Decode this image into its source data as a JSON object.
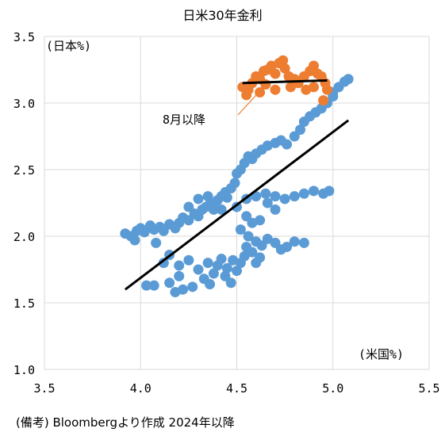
{
  "chart_data": {
    "type": "scatter",
    "title": "日米30年金利",
    "ylabel": "(日本%)",
    "xlabel": "(米国%)",
    "annotation": "8月以降",
    "note": "(備考) Bloombergより作成 2024年以降",
    "xlim": [
      3.5,
      5.5
    ],
    "ylim": [
      1.0,
      3.5
    ],
    "x_ticks": [
      "3.5",
      "4.0",
      "4.5",
      "5.0",
      "5.5"
    ],
    "y_ticks": [
      "1.0",
      "1.5",
      "2.0",
      "2.5",
      "3.0",
      "3.5"
    ],
    "grid": true,
    "colors": {
      "before_aug": "#5B9BD5",
      "from_aug": "#ED7D31",
      "trend": "#000000",
      "grid": "#d9d9d9"
    },
    "series": [
      {
        "name": "",
        "points": [
          [
            3.92,
            2.02
          ],
          [
            3.95,
            2.0
          ],
          [
            3.97,
            1.97
          ],
          [
            3.98,
            2.04
          ],
          [
            4.0,
            2.06
          ],
          [
            4.02,
            2.03
          ],
          [
            4.05,
            2.08
          ],
          [
            4.07,
            2.05
          ],
          [
            4.1,
            2.07
          ],
          [
            4.12,
            2.04
          ],
          [
            4.15,
            2.09
          ],
          [
            4.18,
            2.06
          ],
          [
            4.2,
            2.1
          ],
          [
            4.22,
            2.14
          ],
          [
            4.25,
            2.12
          ],
          [
            4.28,
            2.17
          ],
          [
            4.3,
            2.15
          ],
          [
            4.32,
            2.2
          ],
          [
            4.34,
            2.22
          ],
          [
            4.36,
            2.24
          ],
          [
            4.38,
            2.2
          ],
          [
            4.4,
            2.27
          ],
          [
            4.42,
            2.3
          ],
          [
            4.44,
            2.33
          ],
          [
            4.45,
            2.29
          ],
          [
            4.47,
            2.36
          ],
          [
            4.49,
            2.4
          ],
          [
            4.5,
            2.47
          ],
          [
            4.52,
            2.5
          ],
          [
            4.54,
            2.55
          ],
          [
            4.56,
            2.6
          ],
          [
            4.58,
            2.58
          ],
          [
            4.6,
            2.62
          ],
          [
            4.63,
            2.65
          ],
          [
            4.66,
            2.68
          ],
          [
            4.7,
            2.7
          ],
          [
            4.73,
            2.72
          ],
          [
            4.76,
            2.69
          ],
          [
            4.8,
            2.75
          ],
          [
            4.83,
            2.8
          ],
          [
            4.85,
            2.86
          ],
          [
            4.88,
            2.9
          ],
          [
            4.91,
            2.93
          ],
          [
            4.94,
            2.96
          ],
          [
            4.97,
            3.0
          ],
          [
            5.0,
            3.05
          ],
          [
            5.03,
            3.12
          ],
          [
            5.06,
            3.16
          ],
          [
            5.08,
            3.18
          ],
          [
            5.0,
            3.08
          ],
          [
            4.55,
            2.28
          ],
          [
            4.6,
            2.3
          ],
          [
            4.65,
            2.32
          ],
          [
            4.7,
            2.3
          ],
          [
            4.75,
            2.28
          ],
          [
            4.8,
            2.3
          ],
          [
            4.85,
            2.32
          ],
          [
            4.9,
            2.34
          ],
          [
            4.95,
            2.32
          ],
          [
            4.98,
            2.34
          ],
          [
            4.5,
            2.22
          ],
          [
            4.55,
            2.15
          ],
          [
            4.58,
            2.1
          ],
          [
            4.62,
            2.12
          ],
          [
            4.66,
            2.25
          ],
          [
            4.7,
            2.2
          ],
          [
            4.52,
            2.05
          ],
          [
            4.56,
            2.0
          ],
          [
            4.6,
            1.96
          ],
          [
            4.63,
            1.93
          ],
          [
            4.66,
            1.98
          ],
          [
            4.7,
            1.95
          ],
          [
            4.73,
            1.9
          ],
          [
            4.76,
            1.92
          ],
          [
            4.8,
            1.96
          ],
          [
            4.85,
            1.95
          ],
          [
            4.55,
            1.92
          ],
          [
            4.58,
            1.88
          ],
          [
            4.6,
            1.8
          ],
          [
            4.62,
            1.84
          ],
          [
            4.2,
            1.78
          ],
          [
            4.25,
            1.82
          ],
          [
            4.3,
            1.75
          ],
          [
            4.35,
            1.8
          ],
          [
            4.38,
            1.72
          ],
          [
            4.4,
            1.78
          ],
          [
            4.42,
            1.83
          ],
          [
            4.45,
            1.76
          ],
          [
            4.48,
            1.82
          ],
          [
            4.5,
            1.74
          ],
          [
            4.33,
            1.68
          ],
          [
            4.36,
            1.64
          ],
          [
            4.44,
            1.7
          ],
          [
            4.47,
            1.65
          ],
          [
            4.52,
            1.8
          ],
          [
            4.54,
            1.85
          ],
          [
            4.08,
            1.95
          ],
          [
            4.12,
            1.8
          ],
          [
            4.15,
            1.86
          ],
          [
            4.03,
            1.63
          ],
          [
            4.07,
            1.63
          ],
          [
            4.15,
            1.65
          ],
          [
            4.18,
            1.58
          ],
          [
            4.22,
            1.6
          ],
          [
            4.27,
            1.62
          ],
          [
            4.2,
            1.7
          ],
          [
            4.35,
            2.3
          ],
          [
            4.38,
            2.25
          ],
          [
            4.42,
            2.2
          ],
          [
            4.25,
            2.22
          ],
          [
            4.3,
            2.28
          ]
        ]
      },
      {
        "name": "",
        "points": [
          [
            4.53,
            3.12
          ],
          [
            4.56,
            3.1
          ],
          [
            4.58,
            3.15
          ],
          [
            4.6,
            3.2
          ],
          [
            4.62,
            3.18
          ],
          [
            4.64,
            3.24
          ],
          [
            4.66,
            3.25
          ],
          [
            4.68,
            3.28
          ],
          [
            4.7,
            3.22
          ],
          [
            4.72,
            3.3
          ],
          [
            4.74,
            3.32
          ],
          [
            4.75,
            3.26
          ],
          [
            4.77,
            3.2
          ],
          [
            4.8,
            3.18
          ],
          [
            4.82,
            3.15
          ],
          [
            4.85,
            3.2
          ],
          [
            4.88,
            3.24
          ],
          [
            4.9,
            3.28
          ],
          [
            4.92,
            3.22
          ],
          [
            4.94,
            3.2
          ],
          [
            4.96,
            3.15
          ],
          [
            4.97,
            3.1
          ],
          [
            4.65,
            3.14
          ],
          [
            4.7,
            3.1
          ],
          [
            4.78,
            3.12
          ],
          [
            4.86,
            3.1
          ],
          [
            4.9,
            3.12
          ],
          [
            4.95,
            3.02
          ],
          [
            4.55,
            3.06
          ],
          [
            4.62,
            3.08
          ]
        ]
      }
    ],
    "trend_lines": [
      {
        "x": [
          3.92,
          5.08
        ],
        "y": [
          1.6,
          2.87
        ]
      },
      {
        "x": [
          4.53,
          4.97
        ],
        "y": [
          3.15,
          3.17
        ]
      }
    ]
  }
}
